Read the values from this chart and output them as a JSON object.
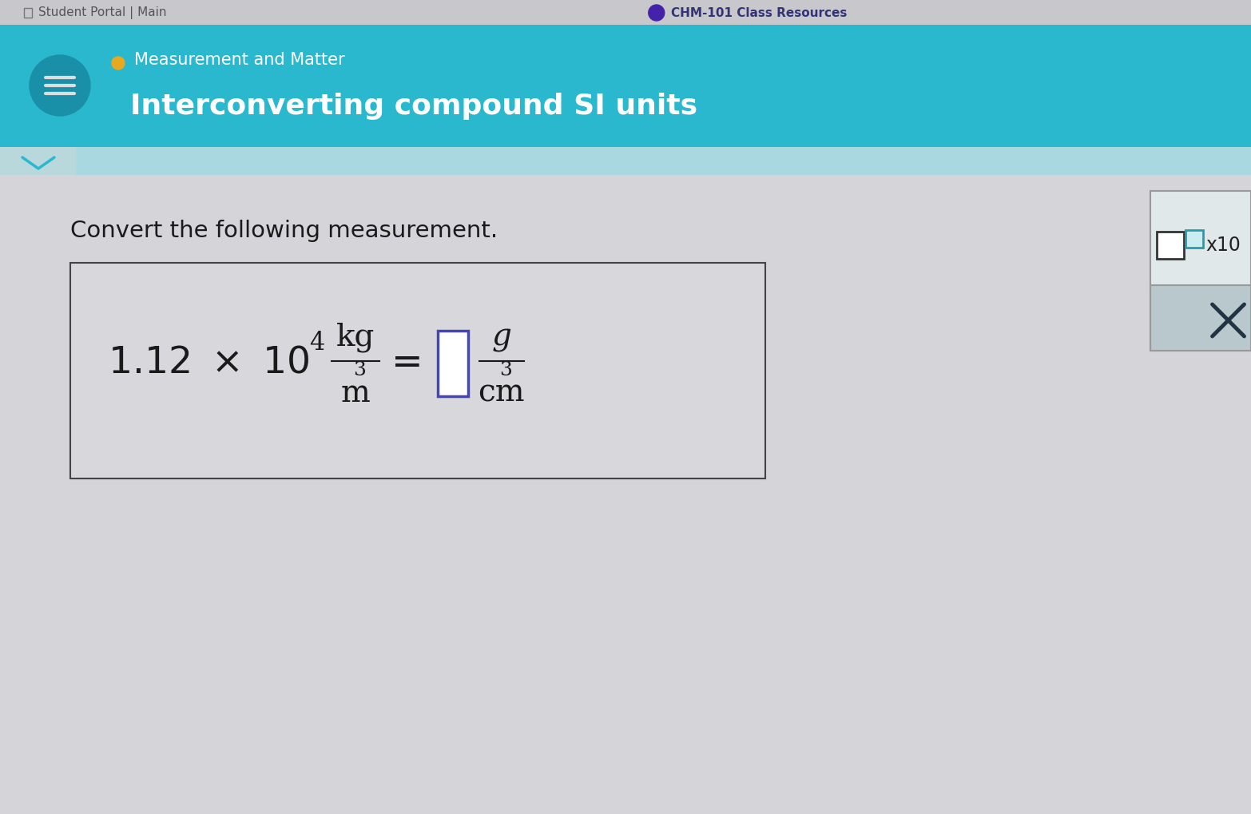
{
  "top_bar_color": "#2ab8ce",
  "nav_bar_color": "#c8c8cc",
  "bg_color": "#d5d5d9",
  "content_bg": "#d5d5d9",
  "header_text1": "Measurement and Matter",
  "header_text2": "Interconverting compound SI units",
  "header_text_color": "#ffffff",
  "dot_color": "#e8a820",
  "nav_top_color": "#b8b8bc",
  "chegg_header_text": "CHM-101 Class Resources",
  "student_portal_text": "Student Portal | Main",
  "question_text": "Convert the following measurement.",
  "question_text_color": "#1a1a1a",
  "box_border_color": "#444444",
  "input_box_color": "#4444bb",
  "formula_color": "#1a1a1a",
  "x10_text_color": "#222222",
  "chevron_color": "#2ab8ce",
  "hamburger_bg": "#1a8fa8",
  "x10_large_box_color": "#333333",
  "x10_small_box_color": "#2a9aaa",
  "x_cross_color": "#223344",
  "x_panel_bg": "#b8c8cc",
  "right_panel_bg": "#d8e0e2"
}
